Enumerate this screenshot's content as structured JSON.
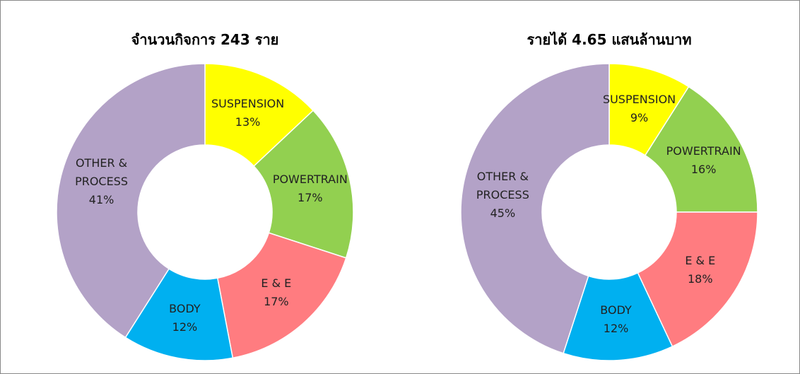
{
  "chart_data": [
    {
      "type": "donut",
      "title": "จำนวนกิจการ 243 ราย",
      "categories": [
        "SUSPENSION",
        "POWERTRAIN",
        "E & E",
        "BODY",
        "OTHER & PROCESS"
      ],
      "values": [
        13,
        17,
        17,
        12,
        41
      ],
      "value_labels": [
        "13%",
        "17%",
        "17%",
        "12%",
        "41%"
      ],
      "colors": [
        "#ffff00",
        "#92d050",
        "#ff7c80",
        "#00b0f0",
        "#b3a2c7"
      ]
    },
    {
      "type": "donut",
      "title": "รายได้ 4.65 แสนล้านบาท",
      "categories": [
        "SUSPENSION",
        "POWERTRAIN",
        "E & E",
        "BODY",
        "OTHER & PROCESS"
      ],
      "values": [
        9,
        16,
        18,
        12,
        45
      ],
      "value_labels": [
        "9%",
        "16%",
        "18%",
        "12%",
        "45%"
      ],
      "colors": [
        "#ffff00",
        "#92d050",
        "#ff7c80",
        "#00b0f0",
        "#b3a2c7"
      ]
    }
  ]
}
